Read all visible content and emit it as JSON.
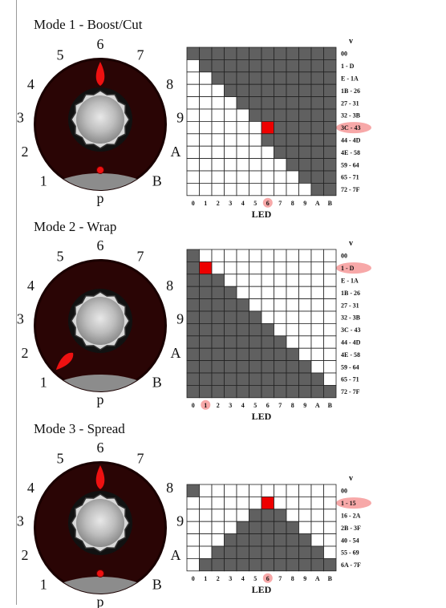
{
  "colors": {
    "knob_body": "#2a0505",
    "knob_rim": "#1a0000",
    "base_grey": "#8c8c8c",
    "pointer": "#ee1111",
    "cell_filled": "#606060",
    "cell_empty": "#ffffff",
    "cell_first": "#606060",
    "cell_active": "#ee0000",
    "highlight": "#f7a8a8"
  },
  "modes": [
    {
      "title": "Mode 1 - Boost/Cut",
      "knob": {
        "labels": [
          "1",
          "2",
          "3",
          "4",
          "5",
          "6",
          "7",
          "8",
          "9",
          "A",
          "B"
        ],
        "pointer_label": "p",
        "pointer_position": "6",
        "pointer_shape": "flame",
        "center_dot": true
      },
      "grid": {
        "v_header": "v",
        "x_label": "LED",
        "x_ticks": [
          "0",
          "1",
          "2",
          "3",
          "4",
          "5",
          "6",
          "7",
          "8",
          "9",
          "A",
          "B"
        ],
        "highlight_x": "6",
        "rows": [
          {
            "label": "00",
            "cells": "111111111111"
          },
          {
            "label": "1 - D",
            "cells": "011111111111"
          },
          {
            "label": "E - 1A",
            "cells": "001111111111"
          },
          {
            "label": "1B - 26",
            "cells": "000111111111"
          },
          {
            "label": "27 - 31",
            "cells": "000011111111"
          },
          {
            "label": "32 - 3B",
            "cells": "000001111111"
          },
          {
            "label": "3C - 43",
            "cells": "000000111111",
            "active": 6,
            "highlight": true
          },
          {
            "label": "44 - 4D",
            "cells": "000000111111"
          },
          {
            "label": "4E - 58",
            "cells": "000000011111"
          },
          {
            "label": "59 - 64",
            "cells": "000000001111"
          },
          {
            "label": "65 - 71",
            "cells": "000000000111"
          },
          {
            "label": "72 - 7F",
            "cells": "000000000011"
          }
        ]
      }
    },
    {
      "title": "Mode 2 - Wrap",
      "knob": {
        "labels": [
          "1",
          "2",
          "3",
          "4",
          "5",
          "6",
          "7",
          "8",
          "9",
          "A",
          "B"
        ],
        "pointer_label": "p",
        "pointer_position": "1",
        "pointer_shape": "flame",
        "center_dot": false
      },
      "grid": {
        "v_header": "v",
        "x_label": "LED",
        "x_ticks": [
          "0",
          "1",
          "2",
          "3",
          "4",
          "5",
          "6",
          "7",
          "8",
          "9",
          "A",
          "B"
        ],
        "highlight_x": "1",
        "rows": [
          {
            "label": "00",
            "cells": "100000000000"
          },
          {
            "label": "1 - D",
            "cells": "110000000000",
            "active": 1,
            "highlight": true
          },
          {
            "label": "E - 1A",
            "cells": "111000000000"
          },
          {
            "label": "1B - 26",
            "cells": "111100000000"
          },
          {
            "label": "27 - 31",
            "cells": "111110000000"
          },
          {
            "label": "32 - 3B",
            "cells": "111111000000"
          },
          {
            "label": "3C - 43",
            "cells": "111111100000"
          },
          {
            "label": "44 - 4D",
            "cells": "111111110000"
          },
          {
            "label": "4E - 58",
            "cells": "111111111000"
          },
          {
            "label": "59 - 64",
            "cells": "111111111100"
          },
          {
            "label": "65 - 71",
            "cells": "111111111110"
          },
          {
            "label": "72 - 7F",
            "cells": "111111111111"
          }
        ]
      }
    },
    {
      "title": "Mode 3 - Spread",
      "knob": {
        "labels": [
          "1",
          "2",
          "3",
          "4",
          "5",
          "6",
          "7",
          "8",
          "9",
          "A",
          "B"
        ],
        "pointer_label": "p",
        "pointer_position": "6",
        "pointer_shape": "flame",
        "center_dot": true
      },
      "grid": {
        "v_header": "v",
        "x_label": "LED",
        "x_ticks": [
          "0",
          "1",
          "2",
          "3",
          "4",
          "5",
          "6",
          "7",
          "8",
          "9",
          "A",
          "B"
        ],
        "highlight_x": "6",
        "rows": [
          {
            "label": "00",
            "cells": "100000000000"
          },
          {
            "label": "1 - 15",
            "cells": "000000100000",
            "active": 6,
            "highlight": true
          },
          {
            "label": "16 - 2A",
            "cells": "000001110000"
          },
          {
            "label": "2B - 3F",
            "cells": "000011111000"
          },
          {
            "label": "40 - 54",
            "cells": "000111111100"
          },
          {
            "label": "55 - 69",
            "cells": "001111111110"
          },
          {
            "label": "6A - 7F",
            "cells": "011111111111"
          }
        ]
      }
    }
  ]
}
